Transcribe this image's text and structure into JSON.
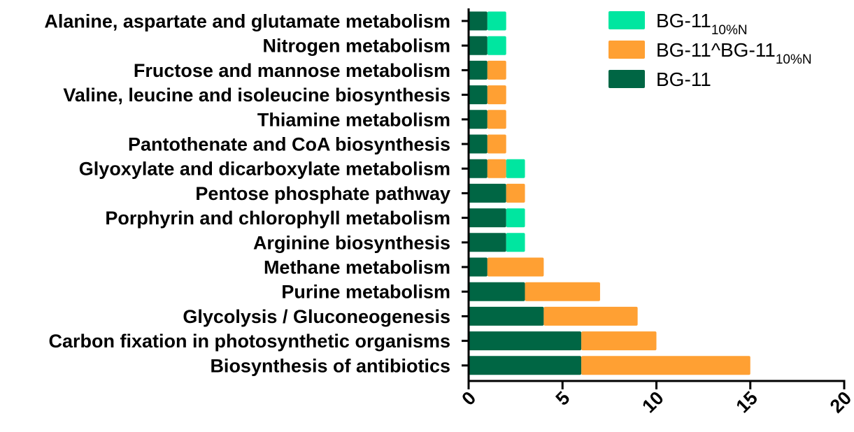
{
  "chart_data": {
    "type": "bar",
    "orientation": "horizontal",
    "stacked": true,
    "title": "",
    "xlabel": "",
    "ylabel": "",
    "xlim": [
      0,
      20
    ],
    "xticks": [
      0,
      5,
      10,
      15,
      20
    ],
    "grid": false,
    "legend_position": "top-right",
    "categories": [
      "Alanine, aspartate and glutamate metabolism",
      "Nitrogen metabolism",
      "Fructose and mannose metabolism",
      "Valine, leucine and isoleucine biosynthesis",
      "Thiamine metabolism",
      "Pantothenate and CoA biosynthesis",
      "Glyoxylate and dicarboxylate metabolism",
      "Pentose phosphate pathway",
      "Porphyrin and chlorophyll metabolism",
      "Arginine biosynthesis",
      "Methane metabolism",
      "Purine metabolism",
      "Glycolysis / Gluconeogenesis",
      "Carbon fixation in photosynthetic organisms",
      "Biosynthesis of antibiotics"
    ],
    "series": [
      {
        "name": "BG-11",
        "color": "#006644",
        "values": [
          1,
          1,
          1,
          1,
          1,
          1,
          1,
          2,
          2,
          2,
          1,
          3,
          4,
          6,
          6
        ]
      },
      {
        "name": "BG-11^BG-11",
        "subscript": "10%N",
        "color": "#ffa033",
        "values": [
          0,
          0,
          1,
          1,
          1,
          1,
          1,
          1,
          0,
          0,
          3,
          4,
          5,
          4,
          9
        ]
      },
      {
        "name": "BG-11",
        "subscript": "10%N",
        "color": "#00e6a0",
        "values": [
          1,
          1,
          0,
          0,
          0,
          0,
          1,
          0,
          1,
          1,
          0,
          0,
          0,
          0,
          0
        ]
      }
    ],
    "legend_order": [
      2,
      1,
      0
    ]
  }
}
